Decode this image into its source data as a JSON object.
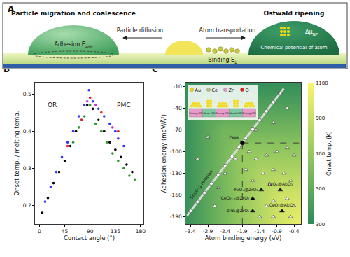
{
  "diagram": {
    "label": "A",
    "left_title": "Particle migration and coalescence",
    "right_title": "Ostwald ripening",
    "adhesion": {
      "main": "Adhesion E",
      "sub": "adh"
    },
    "diffusion": "Particle diffusion",
    "transport": "Atom transportation",
    "binding": {
      "main": "Binding E",
      "sub": "b"
    },
    "chemical": "Chemical potential of atom",
    "delta_mu": {
      "main": "Δμ",
      "sub": "NP"
    }
  },
  "chart_data": [
    {
      "label": "B",
      "type": "scatter",
      "x_label": "Contact angle (°)",
      "y_label": "Onset temp. / melting temp.",
      "xlim": [
        -8,
        185
      ],
      "xticks": [
        0,
        45,
        90,
        135,
        180
      ],
      "ylim": [
        0.15,
        0.53
      ],
      "yticks": [
        0.2,
        0.3,
        0.4,
        0.5
      ],
      "grid": false,
      "annotations": [
        {
          "text": "OR",
          "x": 22,
          "y": 0.47
        },
        {
          "text": "PMC",
          "x": 150,
          "y": 0.47
        }
      ],
      "series": [
        {
          "color": "#000000",
          "marker": "circle",
          "x": [
            5,
            15,
            25,
            35,
            45,
            55,
            65,
            75,
            85,
            95,
            105,
            115,
            125,
            135,
            145,
            155,
            165
          ],
          "values": [
            0.18,
            0.22,
            0.26,
            0.29,
            0.32,
            0.36,
            0.4,
            0.43,
            0.47,
            0.46,
            0.43,
            0.4,
            0.37,
            0.35,
            0.33,
            0.31,
            0.29
          ]
        },
        {
          "color": "#3333ff",
          "marker": "circle",
          "x": [
            10,
            20,
            30,
            40,
            50,
            60,
            70,
            80,
            88,
            95,
            105,
            115,
            125,
            135,
            140,
            150
          ],
          "values": [
            0.21,
            0.25,
            0.29,
            0.33,
            0.37,
            0.4,
            0.44,
            0.47,
            0.51,
            0.48,
            0.46,
            0.44,
            0.42,
            0.4,
            0.38,
            0.36
          ]
        },
        {
          "color": "#2a9a2a",
          "marker": "circle",
          "x": [
            60,
            70,
            80,
            90,
            100,
            110,
            120,
            130,
            140,
            150,
            160,
            170
          ],
          "values": [
            0.37,
            0.41,
            0.44,
            0.47,
            0.42,
            0.4,
            0.37,
            0.34,
            0.32,
            0.3,
            0.28,
            0.27
          ]
        },
        {
          "color": "#e8202a",
          "marker": "circle",
          "x": [
            50,
            75,
            90,
            110,
            140
          ],
          "values": [
            0.36,
            0.43,
            0.49,
            0.45,
            0.4
          ]
        },
        {
          "color": "#cc33cc",
          "marker": "circle",
          "x": [
            85,
            100,
            130
          ],
          "values": [
            0.48,
            0.47,
            0.41
          ]
        }
      ]
    },
    {
      "label": "C",
      "type": "scatter",
      "x_label": "Atom binding energy (eV)",
      "y_label": "Adhesion energy (meV/Å²)",
      "xlim": [
        -3.55,
        -0.2
      ],
      "xticks": [
        -3.4,
        -2.9,
        -2.4,
        -1.9,
        -1.4,
        -0.9,
        -0.4
      ],
      "ylim": [
        -200,
        -5
      ],
      "yticks": [
        -10,
        -40,
        -70,
        -100,
        -130,
        -160,
        -190
      ],
      "grid": false,
      "heatmap": {
        "x": [
          -3.55,
          -3.0,
          -2.45,
          -1.9,
          -1.35,
          -0.8,
          -0.2
        ],
        "y": [
          -5,
          -40,
          -70,
          -100,
          -130,
          -160,
          -200
        ],
        "values": [
          [
            330,
            330,
            330,
            330,
            330,
            330,
            330
          ],
          [
            340,
            450,
            450,
            450,
            450,
            450,
            450
          ],
          [
            340,
            460,
            570,
            570,
            570,
            570,
            570
          ],
          [
            340,
            460,
            580,
            690,
            690,
            690,
            690
          ],
          [
            340,
            460,
            580,
            700,
            810,
            810,
            810
          ],
          [
            340,
            460,
            580,
            700,
            820,
            930,
            930
          ],
          [
            340,
            460,
            580,
            700,
            820,
            940,
            1050
          ]
        ],
        "colorbar": {
          "title": "Onset temp. (K)",
          "range": [
            300,
            1100
          ],
          "ticks": [
            300,
            500,
            700,
            900,
            1100
          ]
        }
      },
      "series": [
        {
          "type": "line",
          "color": "#d9d9d9",
          "line_style": "solid",
          "x": [
            -3.5,
            -0.7
          ],
          "values": [
            -188.2,
            -12.9
          ]
        },
        {
          "type": "line",
          "color": "#333333",
          "line_style": "dash",
          "x": [
            -1.9,
            -1.9
          ],
          "values": [
            -88,
            -200
          ]
        },
        {
          "type": "line",
          "color": "#333333",
          "line_style": "dash",
          "x": [
            -1.9,
            -0.2
          ],
          "values": [
            -88,
            -88
          ]
        },
        {
          "type": "scatter",
          "color": "#ffffff",
          "marker": "circle",
          "x": [
            -3.4,
            -3.2,
            -3.0,
            -2.8,
            -2.6,
            -2.4,
            -2.2,
            -2.0,
            -1.8,
            -1.6,
            -1.4,
            -1.2,
            -1.0,
            -0.8
          ],
          "values": [
            -181.9,
            -169.4,
            -156.9,
            -144.3,
            -131.8,
            -119.3,
            -106.8,
            -94.3,
            -81.7,
            -69.2,
            -56.7,
            -44.2,
            -31.7,
            -19.1
          ]
        },
        {
          "type": "scatter",
          "color": "#ffffff",
          "marker": "triangle",
          "x": [
            -1.7,
            -1.5,
            -1.2,
            -0.9,
            -0.6,
            -0.4,
            -1.8,
            -1.3,
            -1.0,
            -0.7,
            -0.5,
            -1.6,
            -1.1,
            -1.0,
            -0.6,
            -0.4,
            -1.2,
            -1.4,
            -1.0,
            -0.5,
            -2.1,
            -2.4,
            -2.6,
            -2.7,
            -1.0,
            -0.6,
            -1.5,
            -0.8,
            -2.9,
            -3.2
          ],
          "values": [
            -100,
            -110,
            -105,
            -100,
            -95,
            -105,
            -125,
            -130,
            -125,
            -130,
            -140,
            -140,
            -145,
            -168,
            -165,
            -175,
            -175,
            -190,
            -190,
            -190,
            -110,
            -130,
            -150,
            -175,
            -60,
            -40,
            -70,
            -20,
            -80,
            -110
          ]
        },
        {
          "type": "scatter",
          "color": "#000000",
          "marker": "triangle",
          "x": [
            -1.35,
            -1.6,
            -1.6,
            -0.8,
            -0.75
          ],
          "values": [
            -153,
            -165,
            -182,
            -153,
            -182
          ],
          "labels": [
            "FeOₓ@ZrO₂",
            "CeO₂₋ₓ@ZrO₂",
            "ZrB₂@ZrO₂",
            "FeOₓ@Al₂O₃",
            "CeO₂@Al₂O₃"
          ]
        },
        {
          "type": "scatter",
          "color": "#000000",
          "marker": "circle",
          "x": [
            -1.9
          ],
          "values": [
            -88
          ],
          "labels": [
            "Peak"
          ]
        }
      ],
      "annotations": [
        {
          "text": "Scaling relation",
          "x": -2.95,
          "y": -150
        }
      ],
      "inset": {
        "legend": [
          {
            "label": "Au",
            "color": "#f5d90a"
          },
          {
            "label": "Ce",
            "color": "#b5c98a"
          },
          {
            "label": "Zr",
            "color": "#e89ac8"
          },
          {
            "label": "O",
            "color": "#e02020"
          }
        ],
        "labels": [
          "Strong MSI",
          "Weak MSI",
          "Strong MSI",
          "Weak MSI",
          "Strong MSI"
        ],
        "colors": [
          "#e89ac8",
          "#7fc8a0",
          "#e89ac8",
          "#7fc8a0",
          "#e89ac8"
        ]
      }
    }
  ]
}
